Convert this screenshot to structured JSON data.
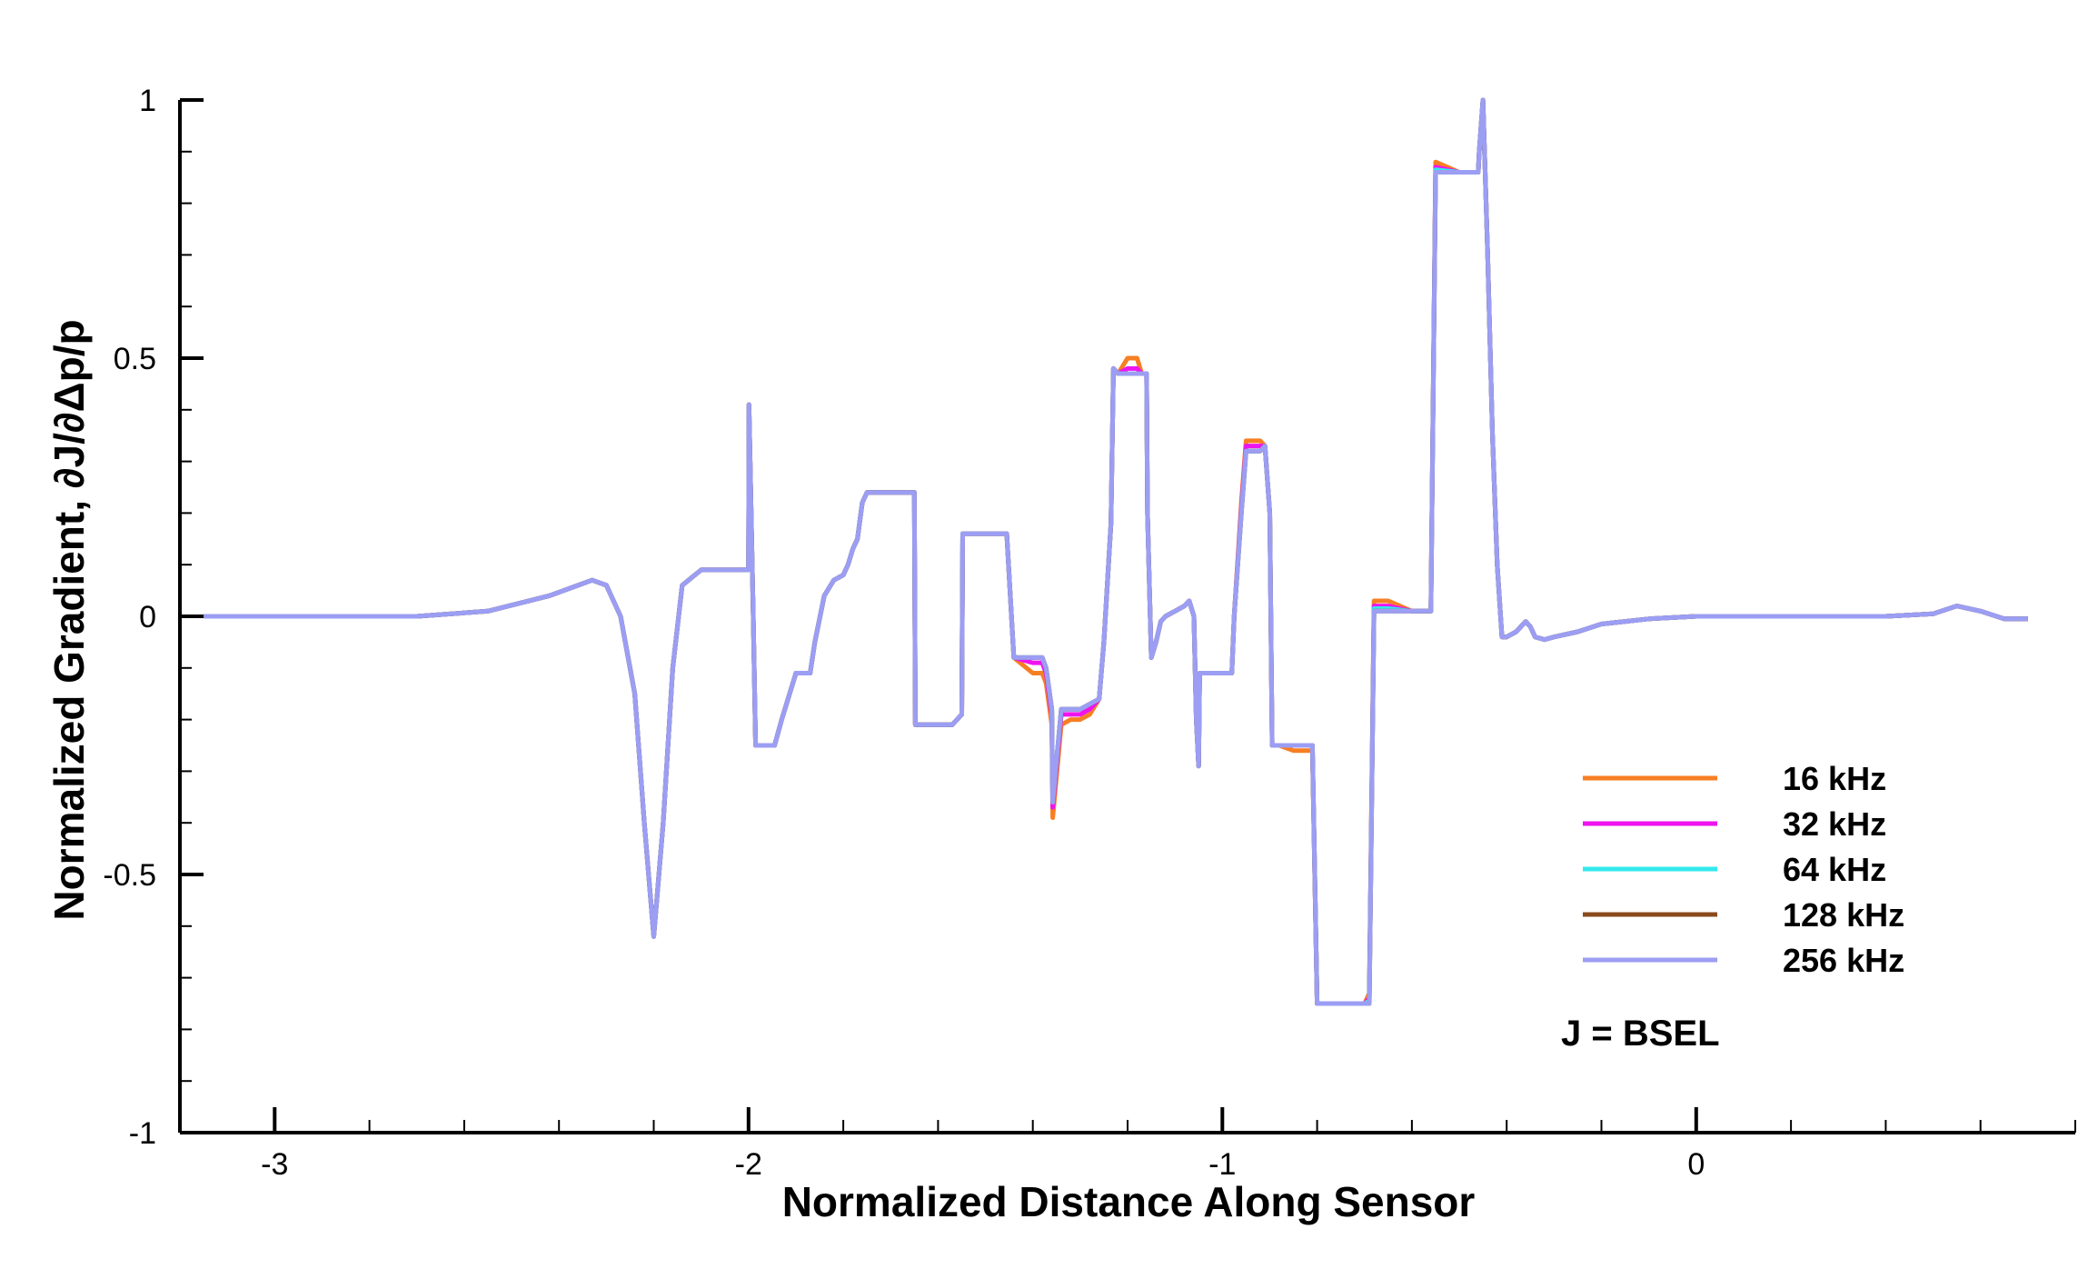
{
  "chart_data": {
    "type": "line",
    "xlabel": "Normalized Distance Along Sensor",
    "ylabel": "Normalized Gradient, ∂J/∂Δp/p",
    "xlim": [
      -3.2,
      0.8
    ],
    "ylim": [
      -1,
      1
    ],
    "x_ticks": [
      -3,
      -2,
      -1,
      0
    ],
    "x_tick_labels": [
      "-3",
      "-2",
      "-1",
      "0"
    ],
    "y_ticks": [
      -1,
      -0.5,
      0,
      0.5,
      1
    ],
    "y_tick_labels": [
      "-1",
      "-0.5",
      "0",
      "0.5",
      "1"
    ],
    "grid": false,
    "legend_position": "bottom-right",
    "annotation": "J = BSEL",
    "base_x": [
      -3.15,
      -2.9,
      -2.7,
      -2.55,
      -2.42,
      -2.33,
      -2.3,
      -2.27,
      -2.24,
      -2.22,
      -2.2,
      -2.18,
      -2.16,
      -2.14,
      -2.1,
      -2.0,
      -1.999,
      -1.99,
      -1.985,
      -1.96,
      -1.945,
      -1.93,
      -1.9,
      -1.89,
      -1.87,
      -1.86,
      -1.84,
      -1.82,
      -1.8,
      -1.79,
      -1.78,
      -1.77,
      -1.76,
      -1.75,
      -1.7,
      -1.65,
      -1.648,
      -1.63,
      -1.6,
      -1.57,
      -1.55,
      -1.548,
      -1.53,
      -1.5,
      -1.46,
      -1.455,
      -1.44,
      -1.4,
      -1.38,
      -1.372,
      -1.36,
      -1.358,
      -1.34,
      -1.32,
      -1.3,
      -1.28,
      -1.26,
      -1.25,
      -1.235,
      -1.23,
      -1.22,
      -1.2,
      -1.19,
      -1.18,
      -1.17,
      -1.16,
      -1.158,
      -1.15,
      -1.14,
      -1.13,
      -1.12,
      -1.1,
      -1.08,
      -1.07,
      -1.06,
      -1.055,
      -1.05,
      -1.048,
      -1.04,
      -1.03,
      -1.0,
      -0.98,
      -0.975,
      -0.96,
      -0.95,
      -0.94,
      -0.93,
      -0.92,
      -0.91,
      -0.9,
      -0.895,
      -0.88,
      -0.85,
      -0.82,
      -0.81,
      -0.8,
      -0.79,
      -0.75,
      -0.7,
      -0.69,
      -0.68,
      -0.65,
      -0.6,
      -0.57,
      -0.56,
      -0.55,
      -0.5,
      -0.47,
      -0.46,
      -0.458,
      -0.45,
      -0.44,
      -0.43,
      -0.42,
      -0.41,
      -0.4,
      -0.38,
      -0.36,
      -0.35,
      -0.34,
      -0.32,
      -0.3,
      -0.25,
      -0.2,
      -0.1,
      0.0,
      0.2,
      0.4,
      0.5,
      0.55,
      0.6,
      0.65,
      0.7,
      0.78
    ],
    "base_y": [
      0.0,
      0.0,
      0.0,
      0.01,
      0.04,
      0.07,
      0.06,
      0.0,
      -0.15,
      -0.4,
      -0.62,
      -0.4,
      -0.1,
      0.06,
      0.09,
      0.09,
      0.41,
      0.0,
      -0.25,
      -0.25,
      -0.25,
      -0.2,
      -0.11,
      -0.11,
      -0.11,
      -0.05,
      0.04,
      0.07,
      0.08,
      0.1,
      0.13,
      0.15,
      0.22,
      0.24,
      0.24,
      0.24,
      -0.21,
      -0.21,
      -0.21,
      -0.21,
      -0.19,
      0.16,
      0.16,
      0.16,
      0.16,
      0.16,
      -0.08,
      -0.08,
      -0.08,
      -0.1,
      -0.18,
      -0.36,
      -0.18,
      -0.18,
      -0.18,
      -0.17,
      -0.16,
      -0.05,
      0.18,
      0.48,
      0.47,
      0.47,
      0.47,
      0.47,
      0.47,
      0.47,
      0.2,
      -0.08,
      -0.05,
      -0.01,
      0.0,
      0.01,
      0.02,
      0.03,
      0.0,
      -0.2,
      -0.29,
      -0.11,
      -0.11,
      -0.11,
      -0.11,
      -0.11,
      0.0,
      0.2,
      0.32,
      0.32,
      0.32,
      0.32,
      0.33,
      0.2,
      -0.25,
      -0.25,
      -0.25,
      -0.25,
      -0.25,
      -0.75,
      -0.75,
      -0.75,
      -0.75,
      -0.75,
      0.01,
      0.01,
      0.01,
      0.01,
      0.01,
      0.86,
      0.86,
      0.86,
      0.86,
      0.9,
      1.0,
      0.7,
      0.35,
      0.1,
      -0.04,
      -0.04,
      -0.03,
      -0.01,
      -0.02,
      -0.04,
      -0.045,
      -0.04,
      -0.03,
      -0.015,
      -0.005,
      0.0,
      0.0,
      0.0,
      0.005,
      0.02,
      0.01,
      -0.005,
      -0.005
    ],
    "offset_x": [
      -1.99,
      -1.84,
      -1.8,
      -1.76,
      -1.56,
      -1.48,
      -1.44,
      -1.36,
      -1.31,
      -1.24,
      -1.2,
      -1.16,
      -1.05,
      -0.98,
      -0.95,
      -0.89,
      -0.83,
      -0.79,
      -0.71,
      -0.67,
      -0.57,
      -0.55,
      -0.47,
      -0.45
    ],
    "series": [
      {
        "name": "16 kHz",
        "color": "#f77f23",
        "offsets": [
          0.0,
          0.0,
          0.0,
          0.0,
          0.0,
          0.0,
          0.0,
          -0.03,
          -0.02,
          0.0,
          0.03,
          0.0,
          0.0,
          0.0,
          0.02,
          0.0,
          -0.01,
          0.0,
          0.0,
          0.02,
          0.0,
          0.02,
          0.0,
          0.0
        ]
      },
      {
        "name": "32 kHz",
        "color": "#ee14ee",
        "offsets": [
          0.0,
          0.0,
          0.0,
          0.0,
          0.0,
          0.0,
          0.0,
          -0.01,
          -0.01,
          0.0,
          0.01,
          0.0,
          0.0,
          0.0,
          0.01,
          0.0,
          0.0,
          0.0,
          0.0,
          0.01,
          0.0,
          0.01,
          0.0,
          0.0
        ]
      },
      {
        "name": "64 kHz",
        "color": "#33e8ec",
        "offsets": [
          0.0,
          0.0,
          0.0,
          0.0,
          0.0,
          0.0,
          0.0,
          0.0,
          0.0,
          0.0,
          0.0,
          0.0,
          0.0,
          0.0,
          0.0,
          0.0,
          0.0,
          0.0,
          0.0,
          0.005,
          0.0,
          0.005,
          0.0,
          0.0
        ]
      },
      {
        "name": "128 kHz",
        "color": "#8a4b1c",
        "offsets": [
          0.0,
          0.0,
          0.0,
          0.0,
          0.0,
          0.0,
          0.0,
          0.0,
          0.0,
          0.0,
          0.0,
          0.0,
          0.0,
          0.0,
          0.0,
          0.0,
          0.0,
          0.0,
          0.0,
          0.0,
          0.0,
          0.0,
          0.0,
          0.0
        ]
      },
      {
        "name": "256 kHz",
        "color": "#9b9ef3",
        "offsets": [
          0.0,
          0.0,
          0.0,
          0.0,
          0.0,
          0.0,
          0.0,
          0.0,
          0.0,
          0.0,
          0.0,
          0.0,
          0.0,
          0.0,
          0.0,
          0.0,
          0.0,
          0.0,
          0.0,
          0.0,
          0.0,
          0.0,
          0.0,
          0.0
        ]
      }
    ]
  }
}
